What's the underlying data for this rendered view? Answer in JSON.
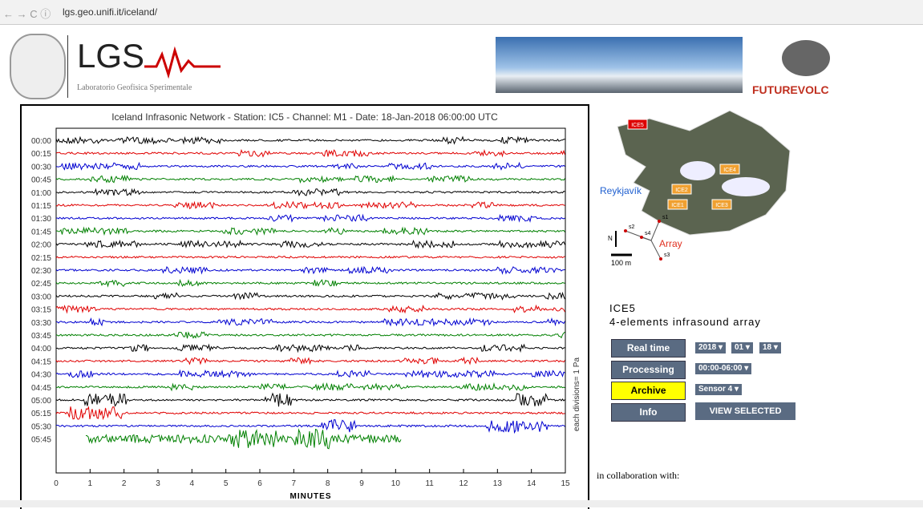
{
  "browser": {
    "url": "lgs.geo.unifi.it/iceland/"
  },
  "header": {
    "logo": "LGS",
    "subtitle": "Laboratorio Geofisica Sperimentale",
    "partner": "FUTUREVOLC"
  },
  "chart": {
    "title": "Iceland Infrasonic Network - Station: IC5 - Channel: M1 - Date: 18-Jan-2018 06:00:00 UTC",
    "rows": [
      "00:00",
      "00:15",
      "00:30",
      "00:45",
      "01:00",
      "01:15",
      "01:30",
      "01:45",
      "02:00",
      "02:15",
      "02:30",
      "02:45",
      "03:00",
      "03:15",
      "03:30",
      "03:45",
      "04:00",
      "04:15",
      "04:30",
      "04:45",
      "05:00",
      "05:15",
      "05:30",
      "05:45"
    ],
    "colors": [
      "#000000",
      "#e00000",
      "#0000d0",
      "#008000"
    ],
    "xlim": [
      0,
      15
    ],
    "xticks": [
      0,
      1,
      2,
      3,
      4,
      5,
      6,
      7,
      8,
      9,
      10,
      11,
      12,
      13,
      14,
      15
    ],
    "xlabel": "MINUTES",
    "ylabel": "each divisions= 1 Pa"
  },
  "map": {
    "stations": [
      "ICE5",
      "ICE4",
      "ICE2",
      "ICE1",
      "ICE3"
    ],
    "city": "Reykjavík",
    "array": "Array",
    "north": "N",
    "sensors": [
      "s1",
      "s2",
      "s3",
      "s4"
    ],
    "scale": "100 m"
  },
  "station": {
    "name": "ICE5",
    "description": "4-elements infrasound array"
  },
  "controls": {
    "buttons": [
      "Real time",
      "Processing",
      "Archive",
      "Info"
    ],
    "year": "2018",
    "month": "01",
    "day": "18",
    "period": "00:00-06:00",
    "sensor": "Sensor 4",
    "submit": "VIEW SELECTED"
  },
  "footer": {
    "text": "in collaboration with:"
  }
}
